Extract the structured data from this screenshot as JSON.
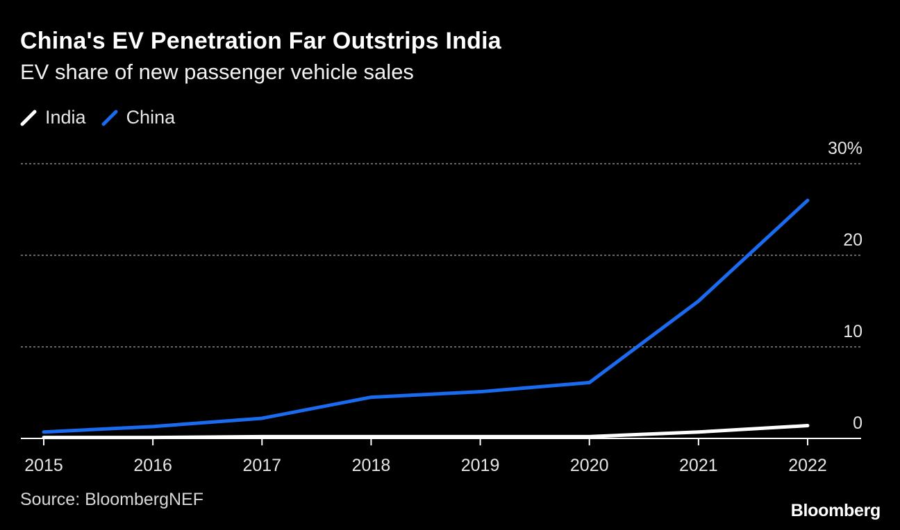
{
  "header": {
    "title": "China's EV Penetration Far Outstrips India",
    "subtitle": "EV share of new passenger vehicle sales"
  },
  "footer": {
    "source": "Source: BloombergNEF",
    "brand": "Bloomberg"
  },
  "colors": {
    "background": "#000000",
    "india": "#ffffff",
    "china": "#1a6bf0",
    "grid": "#8a8a8a"
  },
  "chart_data": {
    "type": "line",
    "title": "China's EV Penetration Far Outstrips India",
    "subtitle": "EV share of new passenger vehicle sales",
    "x": [
      "2015",
      "2016",
      "2017",
      "2018",
      "2019",
      "2020",
      "2021",
      "2022"
    ],
    "series": [
      {
        "name": "India",
        "values": [
          0.1,
          0.1,
          0.2,
          0.2,
          0.2,
          0.2,
          0.7,
          1.4
        ]
      },
      {
        "name": "China",
        "values": [
          0.7,
          1.3,
          2.2,
          4.5,
          5.1,
          6.1,
          15.0,
          26.0
        ]
      }
    ],
    "yticks": [
      {
        "value": 0,
        "label": "0"
      },
      {
        "value": 10,
        "label": "10"
      },
      {
        "value": 20,
        "label": "20"
      },
      {
        "value": 30,
        "label": "30%"
      }
    ],
    "ylim": [
      0,
      30
    ],
    "xlabel": "",
    "ylabel": "",
    "grid": true,
    "legend": "top-left"
  }
}
